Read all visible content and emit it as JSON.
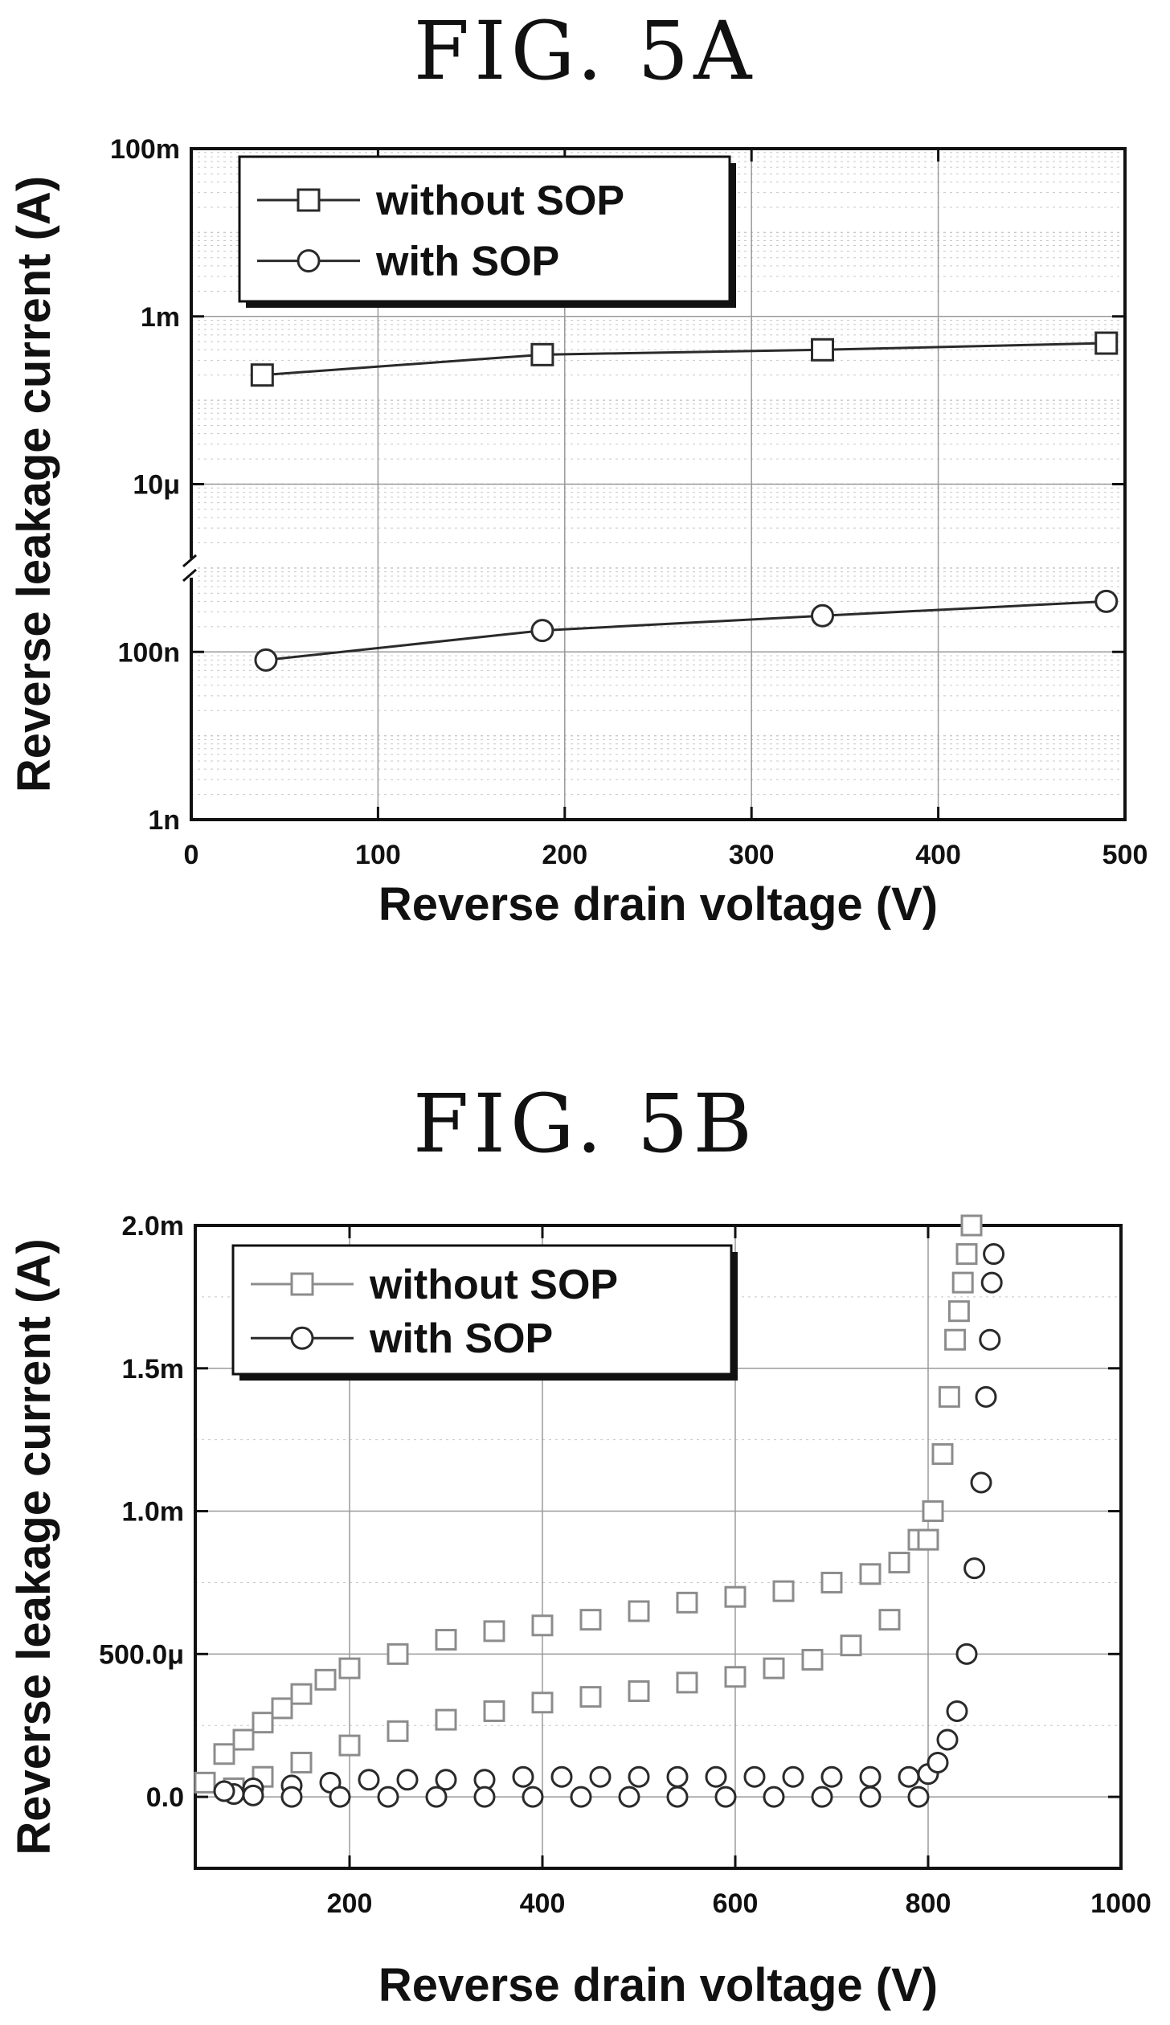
{
  "figures": [
    {
      "title": "FIG. 5A"
    },
    {
      "title": "FIG. 5B"
    }
  ],
  "colors": {
    "series_dark": "#2a2a2a",
    "series_light": "#8c8c8c",
    "grid": "#c8c8c8"
  },
  "chart_data": [
    {
      "type": "line",
      "title": "FIG. 5A",
      "xlabel": "Reverse drain voltage (V)",
      "ylabel": "Reverse leakage current (A)",
      "x_scale": "linear",
      "y_scale": "log",
      "xlim": [
        0,
        500
      ],
      "ylim": [
        1e-09,
        0.1
      ],
      "x_ticks": [
        0,
        100,
        200,
        300,
        400,
        500
      ],
      "x_tick_labels": [
        "0",
        "100",
        "200",
        "300",
        "400",
        "500"
      ],
      "y_ticks": [
        1e-09,
        1e-07,
        1e-05,
        0.001,
        0.1
      ],
      "y_tick_labels": [
        "1n",
        "100n",
        "10μ",
        "1m",
        "100m"
      ],
      "grid": true,
      "legend_position": "top-left",
      "series": [
        {
          "name": "without SOP",
          "marker": "square",
          "x": [
            38,
            188,
            338,
            490
          ],
          "y": [
            0.0002,
            0.00035,
            0.0004,
            0.00048
          ]
        },
        {
          "name": "with SOP",
          "marker": "circle",
          "x": [
            40,
            188,
            338,
            490
          ],
          "y": [
            8e-08,
            1.8e-07,
            2.7e-07,
            4e-07
          ]
        }
      ]
    },
    {
      "type": "scatter",
      "title": "FIG. 5B",
      "xlabel": "Reverse drain voltage (V)",
      "ylabel": "Reverse leakage current (A)",
      "x_scale": "linear",
      "y_scale": "linear",
      "xlim": [
        40,
        1000
      ],
      "ylim": [
        -0.00025,
        0.002
      ],
      "x_ticks": [
        200,
        400,
        600,
        800,
        1000
      ],
      "x_tick_labels": [
        "200",
        "400",
        "600",
        "800",
        "1000"
      ],
      "y_ticks": [
        0,
        0.0005,
        0.001,
        0.0015,
        0.002
      ],
      "y_tick_labels": [
        "0.0",
        "500.0μ",
        "1.0m",
        "1.5m",
        "2.0m"
      ],
      "grid": true,
      "legend_position": "top-left",
      "series": [
        {
          "name": "without SOP",
          "marker": "square",
          "x": [
            50,
            70,
            90,
            110,
            130,
            150,
            175,
            200,
            250,
            300,
            350,
            400,
            450,
            500,
            550,
            600,
            650,
            700,
            740,
            770,
            790,
            805,
            815,
            822,
            828,
            832,
            836,
            840,
            845,
            800,
            760,
            720,
            680,
            640,
            600,
            550,
            500,
            450,
            400,
            350,
            300,
            250,
            200,
            150,
            110,
            80
          ],
          "y": [
            5e-05,
            0.00015,
            0.0002,
            0.00026,
            0.00031,
            0.00036,
            0.00041,
            0.00045,
            0.0005,
            0.00055,
            0.00058,
            0.0006,
            0.00062,
            0.00065,
            0.00068,
            0.0007,
            0.00072,
            0.00075,
            0.00078,
            0.00082,
            0.0009,
            0.001,
            0.0012,
            0.0014,
            0.0016,
            0.0017,
            0.0018,
            0.0019,
            0.002,
            0.0009,
            0.00062,
            0.00053,
            0.00048,
            0.00045,
            0.00042,
            0.0004,
            0.00037,
            0.00035,
            0.00033,
            0.0003,
            0.00027,
            0.00023,
            0.00018,
            0.00012,
            7e-05,
            3e-05
          ]
        },
        {
          "name": "with SOP",
          "marker": "circle",
          "x": [
            80,
            100,
            140,
            180,
            220,
            260,
            300,
            340,
            380,
            420,
            460,
            500,
            540,
            580,
            620,
            660,
            700,
            740,
            780,
            800,
            810,
            820,
            830,
            840,
            848,
            855,
            860,
            864,
            866,
            868,
            790,
            740,
            690,
            640,
            590,
            540,
            490,
            440,
            390,
            340,
            290,
            240,
            190,
            140,
            100,
            70
          ],
          "y": [
            1e-05,
            3e-05,
            4e-05,
            5e-05,
            6e-05,
            6e-05,
            6e-05,
            6e-05,
            7e-05,
            7e-05,
            7e-05,
            7e-05,
            7e-05,
            7e-05,
            7e-05,
            7e-05,
            7e-05,
            7e-05,
            7e-05,
            8e-05,
            0.00012,
            0.0002,
            0.0003,
            0.0005,
            0.0008,
            0.0011,
            0.0014,
            0.0016,
            0.0018,
            0.0019,
            0,
            0,
            0,
            0,
            0,
            0,
            0,
            0,
            0,
            0,
            0,
            0,
            0,
            0,
            5e-06,
            2e-05
          ]
        }
      ]
    }
  ]
}
